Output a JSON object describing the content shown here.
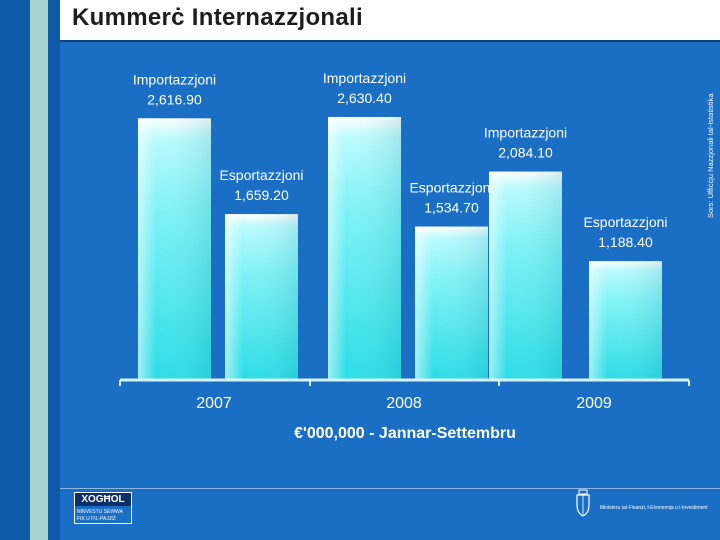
{
  "page": {
    "title": "Kummerċ Internazzjonali",
    "source_note": "Sors: Uffiċċju Nazzjonali tal-Istatistika",
    "colors": {
      "background": "#1a6fc4",
      "bar_top": "#ffffff",
      "bar_mid": "#7ff3f7",
      "bar_bottom": "#2bdde6",
      "text": "#ffffff"
    }
  },
  "chart_data": {
    "type": "bar",
    "categories": [
      "2007",
      "2008",
      "2009"
    ],
    "series": [
      {
        "name": "Importazzjoni",
        "values": [
          2616.9,
          2630.4,
          2084.1
        ],
        "labels": [
          "2,616.90",
          "2,630.40",
          "2,084.10"
        ]
      },
      {
        "name": "Esportazzjoni",
        "values": [
          1659.2,
          1534.7,
          1188.4
        ],
        "labels": [
          "1,659.20",
          "1,534.70",
          "1,188.40"
        ]
      }
    ],
    "xlabel": "€'000,000 - Jannar-Settembru",
    "ylabel": "",
    "ylim": [
      0,
      3000
    ],
    "grid": false,
    "legend": "none"
  },
  "footer": {
    "logo_main": "XOGĦOL",
    "logo_line1": "NINVESTU SEWWA",
    "logo_line2": "FIK U FIL-PAJJIŻ",
    "ministry": "Ministeru tal-Finanzi, l-Ekonomija u l-Investiment"
  }
}
